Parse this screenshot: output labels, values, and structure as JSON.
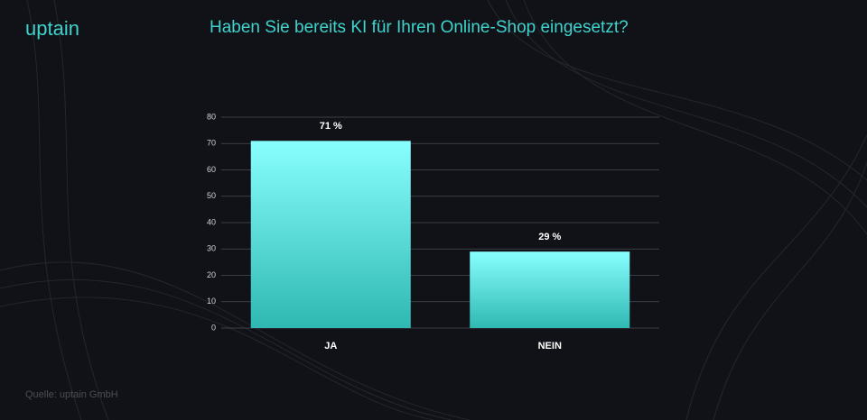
{
  "logo": "uptain",
  "source": "Quelle: uptain GmbH",
  "chart_data": {
    "type": "bar",
    "title": "Haben Sie bereits KI für Ihren Online-Shop eingesetzt?",
    "categories": [
      "JA",
      "NEIN"
    ],
    "values": [
      71,
      29
    ],
    "value_labels": [
      "71 %",
      "29 %"
    ],
    "color": "#8ff",
    "ylim": [
      0,
      80
    ],
    "yticks": [
      0,
      10,
      20,
      30,
      40,
      50,
      60,
      70,
      80
    ],
    "grid": true
  }
}
